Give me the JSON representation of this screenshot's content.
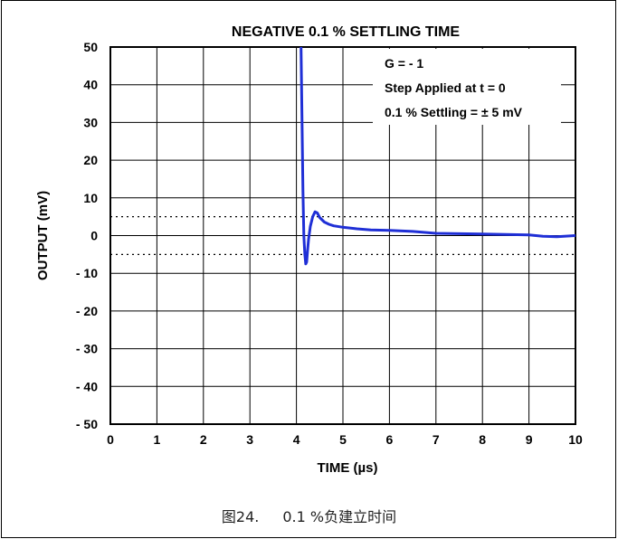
{
  "chart_data": {
    "type": "line",
    "title": "NEGATIVE 0.1 % SETTLING TIME",
    "xlabel": "TIME (µs)",
    "ylabel": "OUTPUT (mV)",
    "xlim": [
      0,
      10
    ],
    "ylim": [
      -50,
      50
    ],
    "grid": true,
    "x_ticks": [
      "0",
      "1",
      "2",
      "3",
      "4",
      "5",
      "6",
      "7",
      "8",
      "9",
      "10"
    ],
    "y_ticks": [
      "50",
      "40",
      "30",
      "20",
      "10",
      "0",
      "- 10",
      "- 20",
      "- 30",
      "- 40",
      "- 50"
    ],
    "y_tick_values": [
      50,
      40,
      30,
      20,
      10,
      0,
      -10,
      -20,
      -30,
      -40,
      -50
    ],
    "settling_band": [
      5,
      -5
    ],
    "annotation": [
      "G = - 1",
      "Step Applied at t = 0",
      "0.1 % Settling = ± 5 mV"
    ],
    "line_color": "#1f2fd6",
    "series": [
      {
        "x": [
          4.1,
          4.12,
          4.14,
          4.16,
          4.18,
          4.2,
          4.22,
          4.24,
          4.26,
          4.3,
          4.35,
          4.4,
          4.45,
          4.5,
          4.6,
          4.7,
          4.8,
          5.0,
          5.3,
          5.6,
          6.0,
          6.5,
          7.0,
          7.5,
          8.0,
          8.5,
          9.0,
          9.3,
          9.6,
          10.0
        ],
        "y": [
          50,
          30,
          12,
          0,
          -5,
          -7.5,
          -7,
          -4,
          -1,
          2.5,
          5,
          6.3,
          6,
          4.8,
          3.6,
          3,
          2.6,
          2.2,
          1.8,
          1.5,
          1.4,
          1.1,
          0.6,
          0.5,
          0.4,
          0.3,
          0.2,
          -0.2,
          -0.3,
          0.0
        ]
      }
    ]
  },
  "caption": {
    "figure_number": "图24.",
    "text": "0.1 %负建立时间"
  }
}
